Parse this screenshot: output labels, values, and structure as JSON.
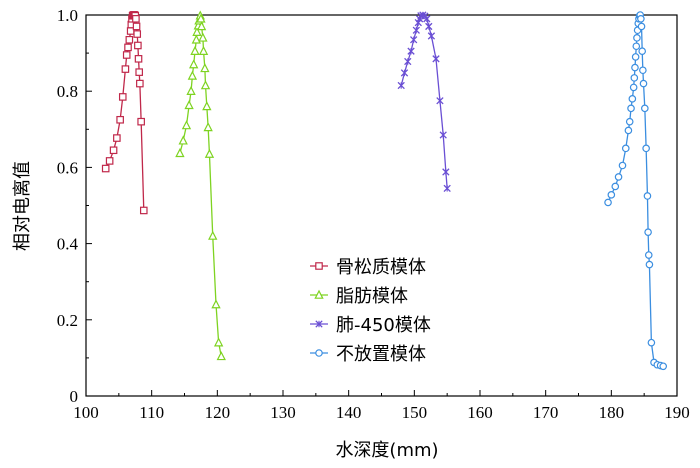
{
  "chart_data": {
    "type": "line",
    "xlabel": "水深度(mm)",
    "ylabel": "相对电离值",
    "xlim": [
      100,
      190
    ],
    "ylim": [
      0,
      1.0
    ],
    "xticks": [
      "100",
      "110",
      "120",
      "130",
      "140",
      "150",
      "160",
      "170",
      "180",
      "190"
    ],
    "yticks": [
      "0",
      "0.2",
      "0.4",
      "0.6",
      "0.8",
      "1.0"
    ],
    "grid": false,
    "legend_position": "center-left",
    "series": [
      {
        "name": "骨松质模体",
        "color": "#c0284a",
        "marker": "square",
        "points": [
          [
            103.0,
            0.597
          ],
          [
            103.6,
            0.617
          ],
          [
            104.2,
            0.645
          ],
          [
            104.7,
            0.677
          ],
          [
            105.2,
            0.725
          ],
          [
            105.6,
            0.785
          ],
          [
            106.0,
            0.858
          ],
          [
            106.2,
            0.895
          ],
          [
            106.4,
            0.915
          ],
          [
            106.6,
            0.935
          ],
          [
            106.8,
            0.958
          ],
          [
            106.9,
            0.975
          ],
          [
            107.0,
            0.99
          ],
          [
            107.1,
            0.998
          ],
          [
            107.2,
            1.0
          ],
          [
            107.3,
            1.0
          ],
          [
            107.4,
            1.0
          ],
          [
            107.5,
            0.998
          ],
          [
            107.6,
            0.99
          ],
          [
            107.7,
            0.97
          ],
          [
            107.8,
            0.95
          ],
          [
            107.9,
            0.92
          ],
          [
            108.0,
            0.885
          ],
          [
            108.1,
            0.85
          ],
          [
            108.2,
            0.82
          ],
          [
            108.4,
            0.72
          ],
          [
            108.8,
            0.487
          ]
        ]
      },
      {
        "name": "脂肪模体",
        "color": "#7ed321",
        "marker": "triangle",
        "points": [
          [
            114.3,
            0.637
          ],
          [
            114.8,
            0.67
          ],
          [
            115.3,
            0.71
          ],
          [
            115.7,
            0.763
          ],
          [
            116.0,
            0.8
          ],
          [
            116.2,
            0.84
          ],
          [
            116.4,
            0.87
          ],
          [
            116.6,
            0.905
          ],
          [
            116.8,
            0.935
          ],
          [
            116.9,
            0.955
          ],
          [
            117.1,
            0.972
          ],
          [
            117.2,
            0.985
          ],
          [
            117.4,
            0.998
          ],
          [
            117.5,
            0.99
          ],
          [
            117.6,
            0.97
          ],
          [
            117.8,
            0.94
          ],
          [
            117.9,
            0.905
          ],
          [
            118.1,
            0.86
          ],
          [
            118.2,
            0.815
          ],
          [
            118.4,
            0.76
          ],
          [
            118.6,
            0.705
          ],
          [
            118.8,
            0.635
          ],
          [
            119.3,
            0.42
          ],
          [
            119.8,
            0.24
          ],
          [
            120.2,
            0.14
          ],
          [
            120.6,
            0.104
          ]
        ]
      },
      {
        "name": "肺-450模体",
        "color": "#6a4fd4",
        "marker": "x",
        "points": [
          [
            148.0,
            0.815
          ],
          [
            148.5,
            0.848
          ],
          [
            149.0,
            0.878
          ],
          [
            149.5,
            0.905
          ],
          [
            149.9,
            0.935
          ],
          [
            150.3,
            0.96
          ],
          [
            150.6,
            0.98
          ],
          [
            150.8,
            0.99
          ],
          [
            151.0,
            0.998
          ],
          [
            151.3,
            1.0
          ],
          [
            151.6,
            0.997
          ],
          [
            151.9,
            0.99
          ],
          [
            152.2,
            0.97
          ],
          [
            152.6,
            0.945
          ],
          [
            153.3,
            0.885
          ],
          [
            153.9,
            0.775
          ],
          [
            154.4,
            0.685
          ],
          [
            154.8,
            0.588
          ],
          [
            155.0,
            0.545
          ]
        ]
      },
      {
        "name": "不放置模体",
        "color": "#3b8ee0",
        "marker": "circle",
        "points": [
          [
            179.5,
            0.508
          ],
          [
            180.0,
            0.528
          ],
          [
            180.6,
            0.55
          ],
          [
            181.1,
            0.575
          ],
          [
            181.7,
            0.605
          ],
          [
            182.2,
            0.65
          ],
          [
            182.6,
            0.697
          ],
          [
            182.8,
            0.72
          ],
          [
            183.0,
            0.755
          ],
          [
            183.2,
            0.78
          ],
          [
            183.4,
            0.81
          ],
          [
            183.5,
            0.835
          ],
          [
            183.6,
            0.862
          ],
          [
            183.7,
            0.89
          ],
          [
            183.8,
            0.918
          ],
          [
            183.9,
            0.94
          ],
          [
            184.0,
            0.96
          ],
          [
            184.1,
            0.978
          ],
          [
            184.2,
            0.99
          ],
          [
            184.3,
            0.998
          ],
          [
            184.4,
            1.0
          ],
          [
            184.5,
            0.99
          ],
          [
            184.6,
            0.97
          ],
          [
            184.7,
            0.905
          ],
          [
            184.8,
            0.855
          ],
          [
            184.9,
            0.82
          ],
          [
            185.1,
            0.755
          ],
          [
            185.3,
            0.65
          ],
          [
            185.5,
            0.525
          ],
          [
            185.6,
            0.43
          ],
          [
            185.7,
            0.37
          ],
          [
            185.8,
            0.345
          ],
          [
            186.1,
            0.14
          ],
          [
            186.5,
            0.088
          ],
          [
            187.0,
            0.082
          ],
          [
            187.5,
            0.08
          ],
          [
            187.9,
            0.078
          ]
        ]
      }
    ]
  }
}
